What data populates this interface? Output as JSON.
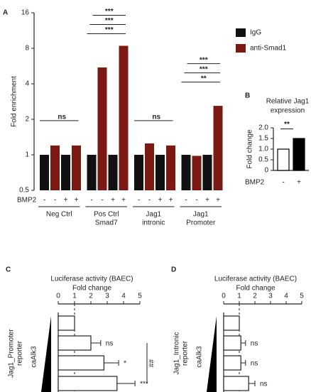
{
  "chart_data": [
    {
      "type": "bar",
      "panel": "A",
      "ylabel": "Fold enrichment",
      "log_scale": true,
      "log_base": 2,
      "ylim": [
        0.5,
        16
      ],
      "yticks": [
        0.5,
        1,
        2,
        4,
        8,
        16
      ],
      "categories": [
        [
          "Neg Ctrl"
        ],
        [
          "Pos Ctrl",
          "Smad7"
        ],
        [
          "Jag1",
          "intronic"
        ],
        [
          "Jag1",
          "Promoter"
        ]
      ],
      "factor_label": "BMP2",
      "factor_levels": [
        "-",
        "-",
        "+",
        "+"
      ],
      "legend": "right",
      "series": [
        {
          "name": "IgG",
          "color": "#111111",
          "values": [
            [
              1.0,
              1.0
            ],
            [
              1.0,
              1.0
            ],
            [
              1.0,
              1.0
            ],
            [
              1.0,
              1.0
            ]
          ],
          "errors": [
            [
              0.07,
              0.12
            ],
            [
              0.1,
              0.17
            ],
            [
              0.22,
              0.17
            ],
            [
              0.05,
              0.5
            ]
          ]
        },
        {
          "name": "anti-Smad1",
          "color": "#7a1a12",
          "values": [
            [
              1.2,
              1.2
            ],
            [
              5.5,
              8.4
            ],
            [
              1.25,
              1.2
            ],
            [
              0.98,
              2.6
            ]
          ],
          "errors": [
            [
              0.1,
              0.45
            ],
            [
              3.5,
              0.6
            ],
            [
              0.3,
              0.45
            ],
            [
              0.05,
              0.9
            ]
          ]
        }
      ],
      "annotations": [
        [
          "ns"
        ],
        [
          "***",
          "***",
          "***"
        ],
        [
          "ns"
        ],
        [
          "**",
          "***",
          "***"
        ]
      ]
    },
    {
      "type": "bar",
      "panel": "B",
      "title": [
        "Relative Jag1",
        "expression"
      ],
      "ylabel": "Fold change",
      "ylim": [
        0,
        2
      ],
      "yticks": [
        0,
        0.5,
        {
          "value": 1,
          "label": "1.0"
        },
        1.5,
        {
          "value": 2,
          "label": "2.0"
        }
      ],
      "factor_label": "BMP2",
      "factor_levels": [
        "-",
        "+"
      ],
      "values": [
        1.0,
        1.5
      ],
      "errors": [
        0.1,
        0.25
      ],
      "colors": [
        "#ffffff",
        "#000000"
      ],
      "annotation": "**"
    },
    {
      "type": "hbar",
      "panel": "C",
      "title": [
        "Luciferase activity (BAEC)",
        "Fold change"
      ],
      "xlim": [
        0,
        5
      ],
      "xticks": [
        0,
        1,
        2,
        3,
        4,
        5
      ],
      "ylabel": [
        "Jag1_Promoter",
        "reporter"
      ],
      "treatment": "caAlk3",
      "reference_line": 1,
      "values": [
        1.0,
        2.0,
        2.8,
        3.6
      ],
      "errors": [
        0,
        0.6,
        0.9,
        1.1
      ],
      "annotations": [
        null,
        "ns",
        "*",
        "***"
      ],
      "extra_annotation": "##"
    },
    {
      "type": "hbar",
      "panel": "D",
      "title": [
        "Luciferase activity (BAEC)",
        "Fold change"
      ],
      "xlim": [
        0,
        5
      ],
      "xticks": [
        0,
        1,
        2,
        3,
        4,
        5
      ],
      "ylabel": [
        "Jag1_Intronic",
        "reporter"
      ],
      "treatment": "caAlk3",
      "reference_line": 1,
      "values": [
        1.0,
        1.1,
        1.1,
        1.6
      ],
      "errors": [
        0,
        0.3,
        0.3,
        0.4
      ],
      "annotations": [
        null,
        "ns",
        "ns",
        "ns"
      ]
    }
  ]
}
